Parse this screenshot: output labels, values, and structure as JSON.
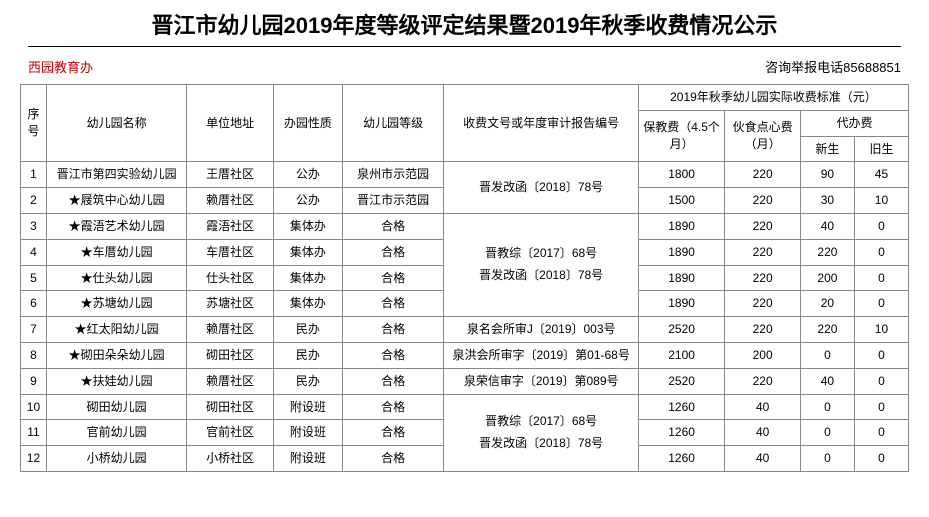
{
  "title": "晋江市幼儿园2019年度等级评定结果暨2019年秋季收费情况公示",
  "org": "西园教育办",
  "phone_label": "咨询举报电话85688851",
  "header": {
    "idx": "序号",
    "name": "幼儿园名称",
    "addr": "单位地址",
    "nature": "办园性质",
    "grade": "幼儿园等级",
    "doc": "收费文号或年度审计报告编号",
    "fee_group": "2019年秋季幼儿园实际收费标准（元）",
    "fee1": "保教费（4.5个月）",
    "fee2": "伙食点心费（月）",
    "fee34": "代办费",
    "fee3": "新生",
    "fee4": "旧生"
  },
  "merged_docs": {
    "d1": "晋发改函〔2018〕78号",
    "d2a": "晋教综〔2017〕68号",
    "d2b": "晋发改函〔2018〕78号",
    "d3a": "晋教综〔2017〕68号",
    "d3b": "晋发改函〔2018〕78号"
  },
  "rows": [
    {
      "idx": "1",
      "name": "晋江市第四实验幼儿园",
      "addr": "王厝社区",
      "nature": "公办",
      "grade": "泉州市示范园",
      "doc": "",
      "f1": "1800",
      "f2": "220",
      "f3": "90",
      "f4": "45"
    },
    {
      "idx": "2",
      "name": "★屐筑中心幼儿园",
      "addr": "赖厝社区",
      "nature": "公办",
      "grade": "晋江市示范园",
      "doc": "",
      "f1": "1500",
      "f2": "220",
      "f3": "30",
      "f4": "10"
    },
    {
      "idx": "3",
      "name": "★霞浯艺术幼儿园",
      "addr": "霞浯社区",
      "nature": "集体办",
      "grade": "合格",
      "doc": "",
      "f1": "1890",
      "f2": "220",
      "f3": "40",
      "f4": "0"
    },
    {
      "idx": "4",
      "name": "★车厝幼儿园",
      "addr": "车厝社区",
      "nature": "集体办",
      "grade": "合格",
      "doc": "",
      "f1": "1890",
      "f2": "220",
      "f3": "220",
      "f4": "0"
    },
    {
      "idx": "5",
      "name": "★仕头幼儿园",
      "addr": "仕头社区",
      "nature": "集体办",
      "grade": "合格",
      "doc": "",
      "f1": "1890",
      "f2": "220",
      "f3": "200",
      "f4": "0"
    },
    {
      "idx": "6",
      "name": "★苏塘幼儿园",
      "addr": "苏塘社区",
      "nature": "集体办",
      "grade": "合格",
      "doc": "",
      "f1": "1890",
      "f2": "220",
      "f3": "20",
      "f4": "0"
    },
    {
      "idx": "7",
      "name": "★红太阳幼儿园",
      "addr": "赖厝社区",
      "nature": "民办",
      "grade": "合格",
      "doc": "泉名会所审J〔2019〕003号",
      "f1": "2520",
      "f2": "220",
      "f3": "220",
      "f4": "10"
    },
    {
      "idx": "8",
      "name": "★砌田朵朵幼儿园",
      "addr": "砌田社区",
      "nature": "民办",
      "grade": "合格",
      "doc": "泉洪会所审字〔2019〕第01-68号",
      "f1": "2100",
      "f2": "200",
      "f3": "0",
      "f4": "0"
    },
    {
      "idx": "9",
      "name": "★扶娃幼儿园",
      "addr": "赖厝社区",
      "nature": "民办",
      "grade": "合格",
      "doc": "泉荣信审字〔2019〕第089号",
      "f1": "2520",
      "f2": "220",
      "f3": "40",
      "f4": "0"
    },
    {
      "idx": "10",
      "name": "砌田幼儿园",
      "addr": "砌田社区",
      "nature": "附设班",
      "grade": "合格",
      "doc": "",
      "f1": "1260",
      "f2": "40",
      "f3": "0",
      "f4": "0"
    },
    {
      "idx": "11",
      "name": "官前幼儿园",
      "addr": "官前社区",
      "nature": "附设班",
      "grade": "合格",
      "doc": "",
      "f1": "1260",
      "f2": "40",
      "f3": "0",
      "f4": "0"
    },
    {
      "idx": "12",
      "name": "小桥幼儿园",
      "addr": "小桥社区",
      "nature": "附设班",
      "grade": "合格",
      "doc": "",
      "f1": "1260",
      "f2": "40",
      "f3": "0",
      "f4": "0"
    }
  ]
}
